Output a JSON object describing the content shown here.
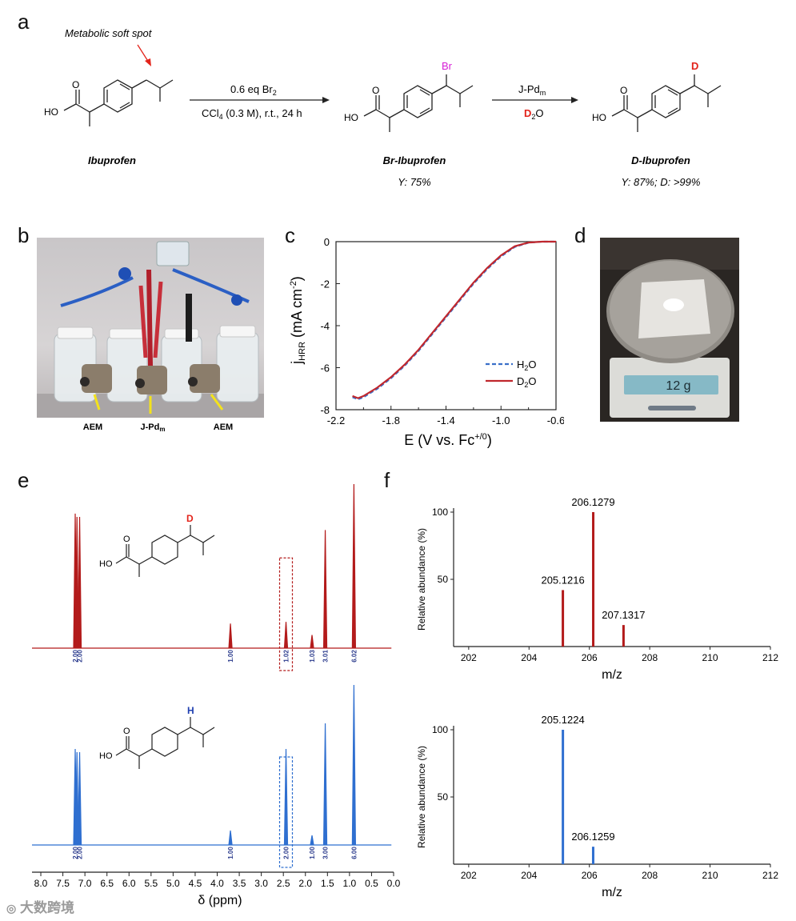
{
  "panels": {
    "a": "a",
    "b": "b",
    "c": "c",
    "d": "d",
    "e": "e",
    "f": "f"
  },
  "scheme": {
    "soft_spot_label": "Metabolic soft spot",
    "step1_top": "0.6 eq Br",
    "step1_top_sub": "2",
    "step1_bottom": "CCl",
    "step1_bottom_sub": "4",
    "step1_bottom_rest": " (0.3 M), r.t., 24 h",
    "step2_top": "J-Pd",
    "step2_top_sub": "m",
    "step2_bottom_d": "D",
    "step2_bottom_sub": "2",
    "step2_bottom_o": "O",
    "cmp1_name": "Ibuprofen",
    "cmp2_name": "Br-Ibuprofen",
    "cmp2_yield": "Y: 75%",
    "cmp3_name": "D-Ibuprofen",
    "cmp3_yield": "Y: 87%; D: >99%",
    "atom_ho": "HO",
    "atom_o": "O",
    "atom_br": "Br",
    "atom_d": "D",
    "atom_h": "H"
  },
  "photo_b": {
    "labels": [
      "AEM",
      "J-Pd",
      "AEM"
    ],
    "label_sub": "m"
  },
  "photo_d": {
    "display": "12 g"
  },
  "chart_data": [
    {
      "type": "line",
      "panel": "c",
      "xlabel": "E (V vs. Fc+/0)",
      "ylabel": "jHRR (mA cm-2)",
      "xlim": [
        -2.2,
        -0.6
      ],
      "ylim": [
        -8,
        0
      ],
      "xticks": [
        "-2.2",
        "-1.8",
        "-1.4",
        "-1.0",
        "-0.6"
      ],
      "yticks": [
        "0",
        "-2",
        "-4",
        "-6",
        "-8"
      ],
      "legend_placement": "bottom-right",
      "series": [
        {
          "name": "H2O",
          "style": "dashed",
          "color": "#3a6fc9",
          "x": [
            -2.08,
            -2.04,
            -2.0,
            -1.9,
            -1.8,
            -1.7,
            -1.6,
            -1.5,
            -1.4,
            -1.3,
            -1.2,
            -1.1,
            -1.0,
            -0.9,
            -0.8,
            -0.7,
            -0.6
          ],
          "y": [
            -7.4,
            -7.5,
            -7.4,
            -7.0,
            -6.5,
            -5.9,
            -5.2,
            -4.4,
            -3.6,
            -2.8,
            -2.0,
            -1.3,
            -0.7,
            -0.25,
            -0.05,
            0,
            0
          ]
        },
        {
          "name": "D2O",
          "style": "solid",
          "color": "#c0272d",
          "x": [
            -2.08,
            -2.04,
            -2.0,
            -1.9,
            -1.8,
            -1.7,
            -1.6,
            -1.5,
            -1.4,
            -1.3,
            -1.2,
            -1.1,
            -1.0,
            -0.9,
            -0.8,
            -0.7,
            -0.6
          ],
          "y": [
            -7.35,
            -7.45,
            -7.35,
            -6.95,
            -6.45,
            -5.85,
            -5.15,
            -4.35,
            -3.55,
            -2.75,
            -1.95,
            -1.25,
            -0.65,
            -0.22,
            -0.04,
            0,
            0
          ]
        }
      ]
    },
    {
      "type": "line",
      "panel": "e",
      "xlabel": "δ (ppm)",
      "xlim": [
        8.2,
        0.0
      ],
      "xticks": [
        "8.0",
        "7.5",
        "7.0",
        "6.5",
        "6.0",
        "5.5",
        "5.0",
        "4.5",
        "4.0",
        "3.5",
        "3.0",
        "2.5",
        "2.0",
        "1.5",
        "1.0",
        "0.5",
        "0.0"
      ],
      "series": [
        {
          "name": "D-Ibuprofen",
          "color": "#b31b1b",
          "peaks": [
            [
              7.22,
              0.82
            ],
            [
              7.18,
              0.8
            ],
            [
              7.12,
              0.8
            ],
            [
              3.7,
              0.15
            ],
            [
              2.44,
              0.16
            ],
            [
              1.85,
              0.08
            ],
            [
              1.55,
              0.72
            ],
            [
              0.9,
              1.0
            ]
          ],
          "integrals": [
            [
              7.22,
              "2.00"
            ],
            [
              7.12,
              "2.00"
            ],
            [
              3.7,
              "1.00"
            ],
            [
              2.44,
              "1.02"
            ],
            [
              1.85,
              "1.03"
            ],
            [
              1.55,
              "3.01"
            ],
            [
              0.9,
              "6.02"
            ]
          ]
        },
        {
          "name": "Ibuprofen",
          "color": "#2f6fd0",
          "peaks": [
            [
              7.22,
              0.6
            ],
            [
              7.18,
              0.58
            ],
            [
              7.12,
              0.58
            ],
            [
              3.7,
              0.09
            ],
            [
              2.44,
              0.6
            ],
            [
              1.85,
              0.06
            ],
            [
              1.55,
              0.76
            ],
            [
              0.9,
              1.0
            ]
          ],
          "integrals": [
            [
              7.22,
              "2.00"
            ],
            [
              7.12,
              "2.00"
            ],
            [
              3.7,
              "1.00"
            ],
            [
              2.44,
              "2.00"
            ],
            [
              1.85,
              "1.00"
            ],
            [
              1.55,
              "3.00"
            ],
            [
              0.9,
              "6.00"
            ]
          ]
        }
      ]
    },
    {
      "type": "bar",
      "panel": "f-top",
      "xlabel": "m/z",
      "ylabel": "Relative abundance (%)",
      "xlim": [
        201.5,
        212
      ],
      "ylim": [
        0,
        100
      ],
      "xticks": [
        "202",
        "204",
        "206",
        "208",
        "210",
        "212"
      ],
      "yticks": [
        "100",
        "50"
      ],
      "color": "#b31b1b",
      "peaks": [
        {
          "mz": 205.1216,
          "label": "205.1216",
          "value": 42
        },
        {
          "mz": 206.1279,
          "label": "206.1279",
          "value": 100
        },
        {
          "mz": 207.1317,
          "label": "207.1317",
          "value": 16
        }
      ]
    },
    {
      "type": "bar",
      "panel": "f-bottom",
      "xlabel": "m/z",
      "ylabel": "Relative abundance (%)",
      "xlim": [
        201.5,
        212
      ],
      "ylim": [
        0,
        100
      ],
      "xticks": [
        "202",
        "204",
        "206",
        "208",
        "210",
        "212"
      ],
      "yticks": [
        "100",
        "50"
      ],
      "color": "#2f6fd0",
      "peaks": [
        {
          "mz": 205.1224,
          "label": "205.1224",
          "value": 100
        },
        {
          "mz": 206.1259,
          "label": "206.1259",
          "value": 13
        }
      ]
    }
  ],
  "watermark": "大数跨境"
}
